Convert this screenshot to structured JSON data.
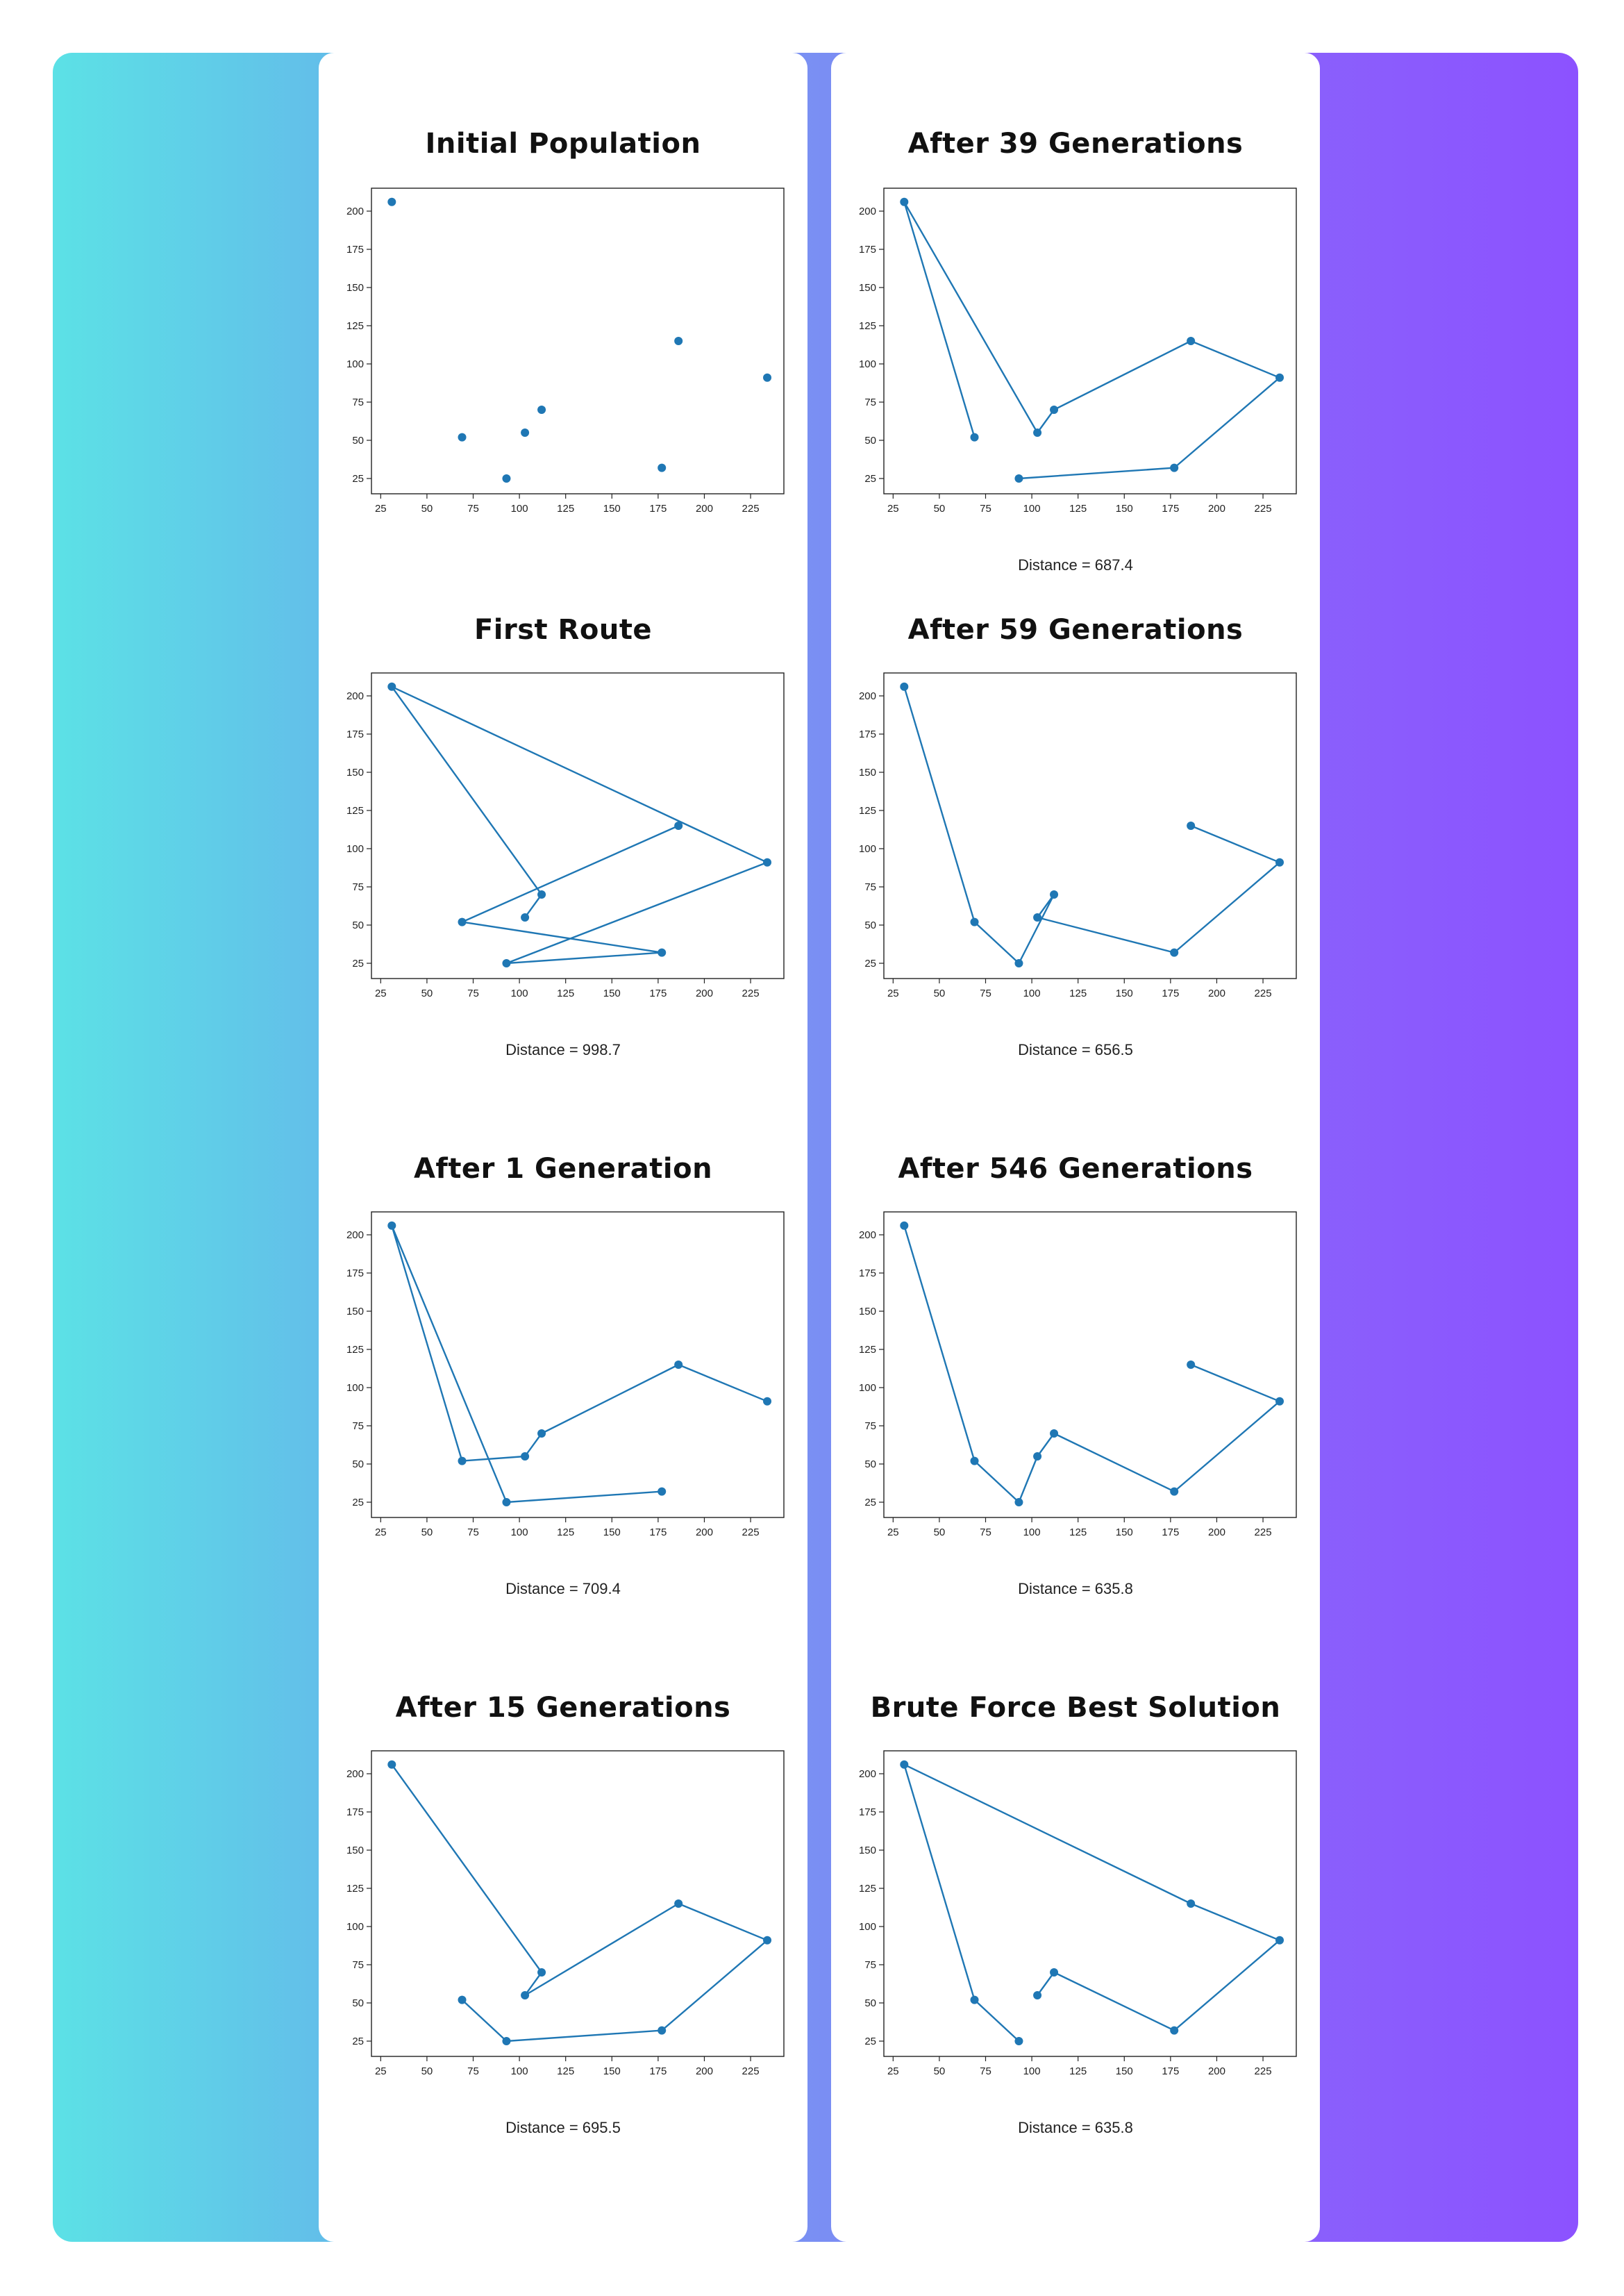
{
  "colors": {
    "marker": "#1f77b4",
    "line": "#1f77b4",
    "gradient_left": "#5ce1e6",
    "gradient_right": "#8c52ff"
  },
  "axis": {
    "xticks": [
      25,
      50,
      75,
      100,
      125,
      150,
      175,
      200,
      225
    ],
    "yticks": [
      25,
      50,
      75,
      100,
      125,
      150,
      175,
      200
    ],
    "xlim": [
      20,
      243
    ],
    "ylim": [
      15,
      215
    ]
  },
  "chart_data": [
    {
      "type": "scatter",
      "title": "Initial Population",
      "x": [
        31,
        69,
        93,
        103,
        112,
        177,
        186,
        234
      ],
      "y": [
        206,
        52,
        25,
        55,
        70,
        32,
        115,
        91
      ],
      "route": [],
      "distance_text": ""
    },
    {
      "type": "line",
      "title": "First Route",
      "x": [
        103,
        112,
        31,
        234,
        93,
        177,
        69,
        186
      ],
      "y": [
        55,
        70,
        206,
        91,
        25,
        32,
        52,
        115
      ],
      "route": true,
      "distance_text": "Distance = 998.7"
    },
    {
      "type": "line",
      "title": "After 1 Generation",
      "x": [
        234,
        186,
        112,
        103,
        69,
        31,
        93,
        177
      ],
      "y": [
        91,
        115,
        70,
        55,
        52,
        206,
        25,
        32
      ],
      "route": true,
      "distance_text": "Distance = 709.4"
    },
    {
      "type": "line",
      "title": "After 15 Generations",
      "x": [
        69,
        93,
        177,
        234,
        186,
        103,
        112,
        31
      ],
      "y": [
        52,
        25,
        32,
        91,
        115,
        55,
        70,
        206
      ],
      "route": true,
      "distance_text": "Distance = 695.5"
    },
    {
      "type": "line",
      "title": "After 39 Generations",
      "x": [
        69,
        31,
        103,
        112,
        186,
        234,
        177,
        93
      ],
      "y": [
        52,
        206,
        55,
        70,
        115,
        91,
        32,
        25
      ],
      "route": true,
      "distance_text": "Distance = 687.4"
    },
    {
      "type": "line",
      "title": "After 59 Generations",
      "x": [
        31,
        69,
        93,
        112,
        103,
        177,
        234,
        186
      ],
      "y": [
        206,
        52,
        25,
        70,
        55,
        32,
        91,
        115
      ],
      "route": true,
      "distance_text": "Distance = 656.5"
    },
    {
      "type": "line",
      "title": "After 546 Generations",
      "x": [
        31,
        69,
        93,
        103,
        112,
        177,
        234,
        186
      ],
      "y": [
        206,
        52,
        25,
        55,
        70,
        32,
        91,
        115
      ],
      "route": true,
      "distance_text": "Distance = 635.8"
    },
    {
      "type": "line",
      "title": "Brute Force Best Solution",
      "x": [
        93,
        69,
        31,
        186,
        234,
        177,
        112,
        103
      ],
      "y": [
        25,
        52,
        206,
        115,
        91,
        32,
        70,
        55
      ],
      "route": true,
      "distance_text": "Distance = 635.8"
    }
  ]
}
